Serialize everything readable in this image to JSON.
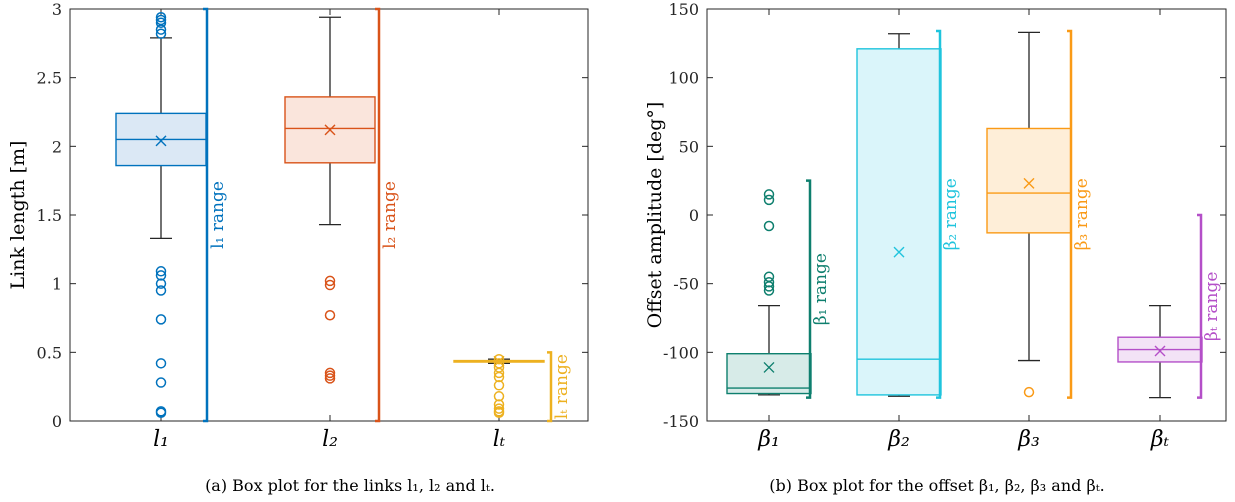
{
  "chart_data": [
    {
      "type": "box",
      "caption": "(a) Box plot for the links l₁, l₂ and lₜ.",
      "ylabel": "Link length [m]",
      "ylim": [
        0,
        3
      ],
      "yticks": [
        "0",
        "0.5",
        "1",
        "1.5",
        "2",
        "2.5",
        "3"
      ],
      "categories": [
        "l₁",
        "l₂",
        "lₜ"
      ],
      "boxes": [
        {
          "color": "#0072BD",
          "fill": "#dbe8f5",
          "whisker_low": 1.33,
          "q1": 1.86,
          "median": 2.05,
          "q3": 2.24,
          "whisker_high": 2.79,
          "mean": 2.04,
          "outliers": [
            2.82,
            2.85,
            2.9,
            2.92,
            2.94,
            1.09,
            1.06,
            1.0,
            0.95,
            0.74,
            0.42,
            0.28,
            0.07,
            0.06
          ],
          "range": [
            0,
            3
          ],
          "range_label": "l₁ range"
        },
        {
          "color": "#D95319",
          "fill": "#fae5dc",
          "whisker_low": 1.43,
          "q1": 1.88,
          "median": 2.13,
          "q3": 2.36,
          "whisker_high": 2.94,
          "mean": 2.12,
          "outliers": [
            1.02,
            0.99,
            0.77,
            0.35,
            0.33,
            0.31
          ],
          "range": [
            0,
            3
          ],
          "range_label": "l₂ range"
        },
        {
          "color": "#EDB120",
          "fill": "#fbf3d6",
          "whisker_low": 0.42,
          "q1": 0.43,
          "median": 0.435,
          "q3": 0.44,
          "whisker_high": 0.45,
          "mean": 0.435,
          "outliers": [
            0.45,
            0.42,
            0.39,
            0.35,
            0.32,
            0.26,
            0.18,
            0.12,
            0.09,
            0.07,
            0.06
          ],
          "range": [
            0,
            0.5
          ],
          "range_label": "lₜ range"
        }
      ]
    },
    {
      "type": "box",
      "caption": "(b) Box plot for the offset β₁, β₂, β₃ and βₜ.",
      "ylabel": "Offset amplitude [deg°]",
      "ylim": [
        -150,
        150
      ],
      "yticks": [
        "-150",
        "-100",
        "-50",
        "0",
        "50",
        "100",
        "150"
      ],
      "categories": [
        "β₁",
        "β₂",
        "β₃",
        "βₜ"
      ],
      "boxes": [
        {
          "color": "#0E7F6E",
          "fill": "#d7ebe8",
          "whisker_low": -131,
          "q1": -130,
          "median": -126,
          "q3": -101,
          "whisker_high": -66,
          "mean": -111,
          "outliers": [
            15,
            11,
            -8,
            -45,
            -49,
            -52,
            -55
          ],
          "range": [
            -133,
            25
          ],
          "range_label": "β₁ range"
        },
        {
          "color": "#1FC4DD",
          "fill": "#daf5fa",
          "whisker_low": -132,
          "q1": -131,
          "median": -105,
          "q3": 121,
          "whisker_high": 132,
          "mean": -27,
          "outliers": [],
          "range": [
            -133,
            134
          ],
          "range_label": "β₂ range"
        },
        {
          "color": "#FA9A16",
          "fill": "#feeed8",
          "whisker_low": -106,
          "q1": -13,
          "median": 16,
          "q3": 63,
          "whisker_high": 133,
          "mean": 23,
          "outliers": [
            -129
          ],
          "range": [
            -133,
            134
          ],
          "range_label": "β₃ range"
        },
        {
          "color": "#B44FC8",
          "fill": "#f3e3f6",
          "whisker_low": -133,
          "q1": -107,
          "median": -98,
          "q3": -89,
          "whisker_high": -66,
          "mean": -99,
          "outliers": [],
          "range": [
            -133,
            0
          ],
          "range_label": "βₜ range"
        }
      ]
    }
  ]
}
